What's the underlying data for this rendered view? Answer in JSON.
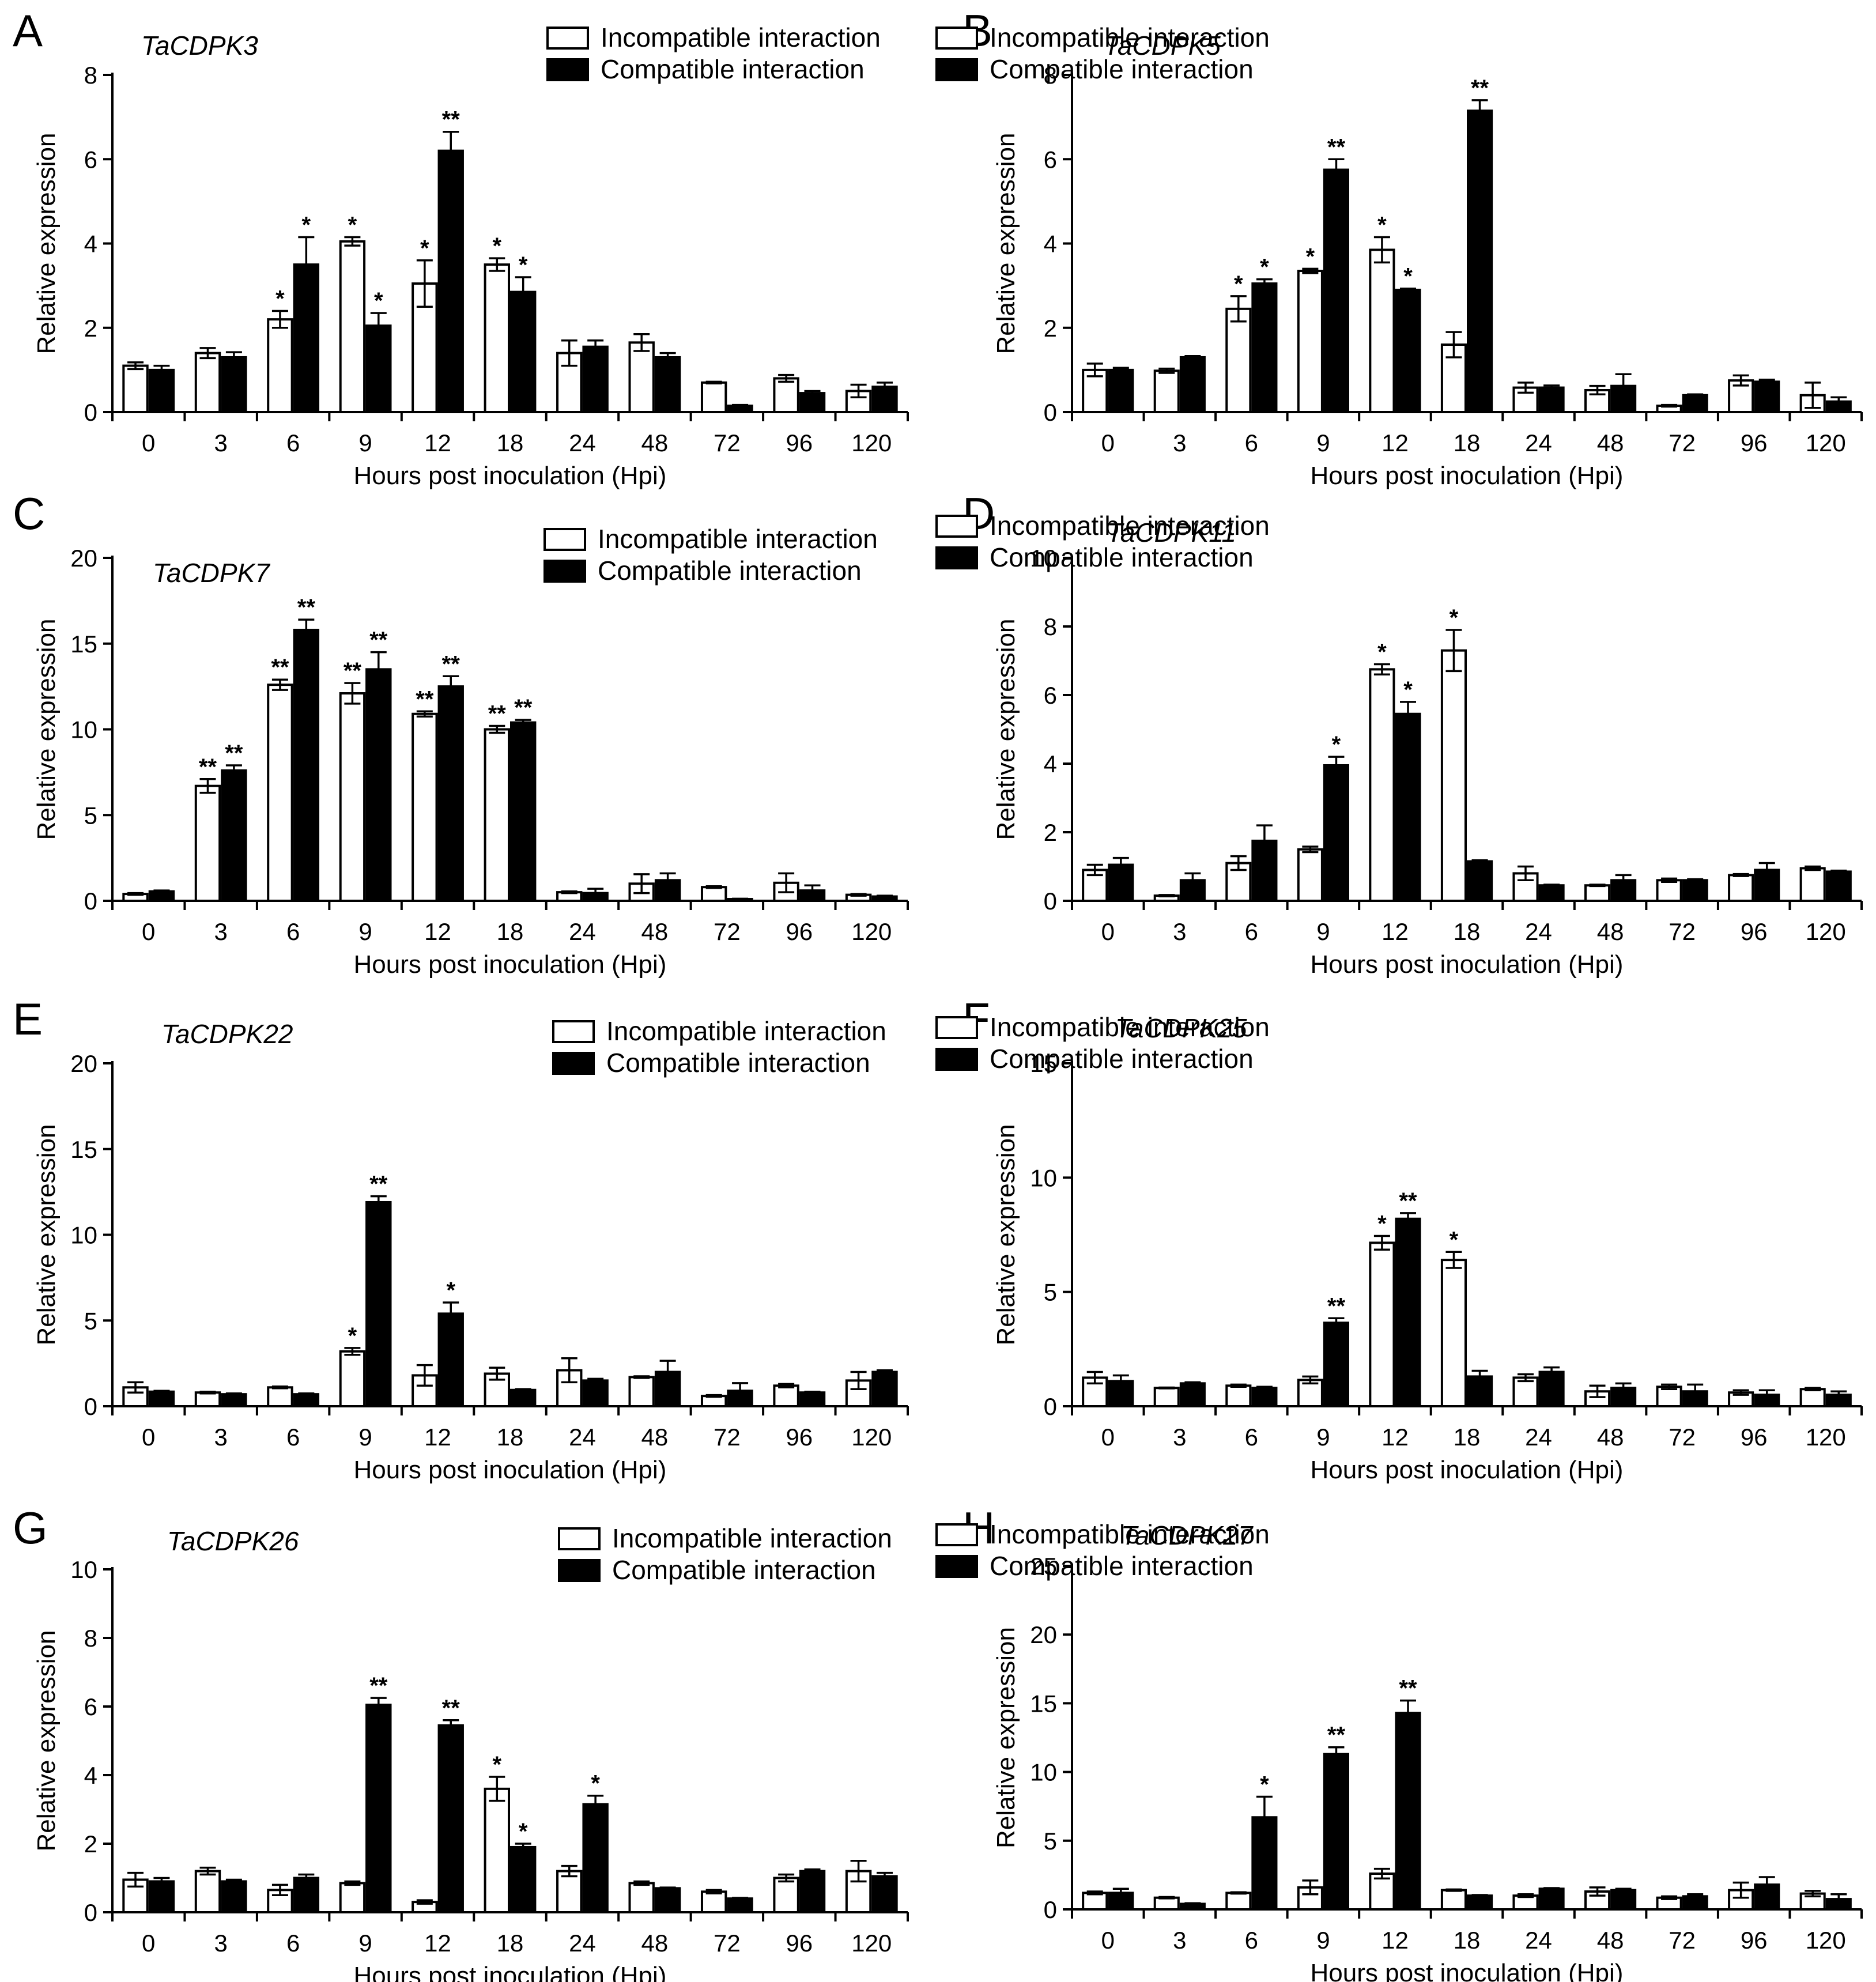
{
  "figure": {
    "categories": [
      "0",
      "3",
      "6",
      "9",
      "12",
      "18",
      "24",
      "48",
      "72",
      "96",
      "120"
    ],
    "xlabel": "Hours post inoculation (Hpi)",
    "ylabel": "Relative expression",
    "legend": [
      "Incompatible interaction",
      "Compatible interaction"
    ],
    "colors": {
      "incompatible": "#ffffff",
      "compatible": "#000000",
      "stroke": "#000000"
    }
  },
  "chart_data": [
    {
      "panel": "A",
      "title": "TaCDPK3",
      "type": "bar",
      "ylim": [
        0,
        8
      ],
      "yticks": [
        0,
        2,
        4,
        6,
        8
      ],
      "categories": [
        "0",
        "3",
        "6",
        "9",
        "12",
        "18",
        "24",
        "48",
        "72",
        "96",
        "120"
      ],
      "xlabel": "Hours post inoculation (Hpi)",
      "ylabel": "Relative expression",
      "series": [
        {
          "name": "Incompatible interaction",
          "values": [
            1.1,
            1.4,
            2.2,
            4.05,
            3.05,
            3.5,
            1.4,
            1.65,
            0.7,
            0.8,
            0.5
          ],
          "errors": [
            0.08,
            0.12,
            0.2,
            0.1,
            0.55,
            0.15,
            0.3,
            0.2,
            0.02,
            0.08,
            0.15
          ],
          "sig": [
            "",
            "",
            "*",
            "*",
            "*",
            "*",
            "",
            "",
            "",
            "",
            ""
          ]
        },
        {
          "name": "Compatible interaction",
          "values": [
            1.0,
            1.3,
            3.5,
            2.05,
            6.2,
            2.85,
            1.55,
            1.3,
            0.15,
            0.45,
            0.6
          ],
          "errors": [
            0.1,
            0.12,
            0.65,
            0.3,
            0.45,
            0.35,
            0.15,
            0.1,
            0.02,
            0.05,
            0.1
          ],
          "sig": [
            "",
            "",
            "*",
            "*",
            "**",
            "*",
            "",
            "",
            "",
            "",
            ""
          ]
        }
      ]
    },
    {
      "panel": "B",
      "title": "TaCDPK5",
      "type": "bar",
      "ylim": [
        0,
        8
      ],
      "yticks": [
        0,
        2,
        4,
        6,
        8
      ],
      "categories": [
        "0",
        "3",
        "6",
        "9",
        "12",
        "18",
        "24",
        "48",
        "72",
        "96",
        "120"
      ],
      "xlabel": "Hours post inoculation (Hpi)",
      "ylabel": "Relative expression",
      "series": [
        {
          "name": "Incompatible interaction",
          "values": [
            1.0,
            0.98,
            2.45,
            3.35,
            3.85,
            1.6,
            0.58,
            0.52,
            0.15,
            0.75,
            0.4
          ],
          "errors": [
            0.15,
            0.05,
            0.3,
            0.05,
            0.3,
            0.3,
            0.12,
            0.1,
            0.02,
            0.12,
            0.3
          ],
          "sig": [
            "",
            "",
            "*",
            "*",
            "*",
            "",
            "",
            "",
            "",
            "",
            ""
          ]
        },
        {
          "name": "Compatible interaction",
          "values": [
            1.0,
            1.3,
            3.05,
            5.75,
            2.9,
            7.15,
            0.58,
            0.62,
            0.4,
            0.72,
            0.25
          ],
          "errors": [
            0.05,
            0.03,
            0.1,
            0.25,
            0.03,
            0.25,
            0.05,
            0.28,
            0.02,
            0.05,
            0.1
          ],
          "sig": [
            "",
            "",
            "*",
            "**",
            "*",
            "**",
            "",
            "",
            "",
            "",
            ""
          ]
        }
      ]
    },
    {
      "panel": "C",
      "title": "TaCDPK7",
      "type": "bar",
      "ylim": [
        0,
        20
      ],
      "yticks": [
        0,
        5,
        10,
        15,
        20
      ],
      "categories": [
        "0",
        "3",
        "6",
        "9",
        "12",
        "18",
        "24",
        "48",
        "72",
        "96",
        "120"
      ],
      "xlabel": "Hours post inoculation (Hpi)",
      "ylabel": "Relative expression",
      "series": [
        {
          "name": "Incompatible interaction",
          "values": [
            0.4,
            6.7,
            12.6,
            12.1,
            10.9,
            10.0,
            0.5,
            1.0,
            0.8,
            1.05,
            0.35
          ],
          "errors": [
            0.05,
            0.4,
            0.3,
            0.6,
            0.15,
            0.2,
            0.05,
            0.55,
            0.05,
            0.55,
            0.05
          ],
          "sig": [
            "",
            "**",
            "**",
            "**",
            "**",
            "**",
            "",
            "",
            "",
            "",
            ""
          ]
        },
        {
          "name": "Compatible interaction",
          "values": [
            0.55,
            7.6,
            15.8,
            13.5,
            12.5,
            10.4,
            0.45,
            1.2,
            0.1,
            0.6,
            0.25
          ],
          "errors": [
            0.05,
            0.3,
            0.6,
            1.0,
            0.6,
            0.15,
            0.25,
            0.4,
            0.02,
            0.3,
            0.05
          ],
          "sig": [
            "",
            "**",
            "**",
            "**",
            "**",
            "**",
            "",
            "",
            "",
            "",
            ""
          ]
        }
      ]
    },
    {
      "panel": "D",
      "title": "TaCDPK11",
      "type": "bar",
      "ylim": [
        0,
        10
      ],
      "yticks": [
        0,
        2,
        4,
        6,
        8,
        10
      ],
      "categories": [
        "0",
        "3",
        "6",
        "9",
        "12",
        "18",
        "24",
        "48",
        "72",
        "96",
        "120"
      ],
      "xlabel": "Hours post inoculation (Hpi)",
      "ylabel": "Relative expression",
      "series": [
        {
          "name": "Incompatible interaction",
          "values": [
            0.9,
            0.15,
            1.1,
            1.5,
            6.75,
            7.3,
            0.8,
            0.45,
            0.6,
            0.75,
            0.95
          ],
          "errors": [
            0.15,
            0.02,
            0.2,
            0.08,
            0.15,
            0.6,
            0.2,
            0.02,
            0.05,
            0.03,
            0.05
          ],
          "sig": [
            "",
            "",
            "",
            "",
            "*",
            "*",
            "",
            "",
            "",
            "",
            ""
          ]
        },
        {
          "name": "Compatible interaction",
          "values": [
            1.05,
            0.6,
            1.75,
            3.95,
            5.45,
            1.15,
            0.45,
            0.6,
            0.6,
            0.9,
            0.85
          ],
          "errors": [
            0.2,
            0.2,
            0.45,
            0.25,
            0.35,
            0.03,
            0.02,
            0.15,
            0.03,
            0.2,
            0.03
          ],
          "sig": [
            "",
            "",
            "",
            "*",
            "*",
            "",
            "",
            "",
            "",
            "",
            ""
          ]
        }
      ]
    },
    {
      "panel": "E",
      "title": "TaCDPK22",
      "type": "bar",
      "ylim": [
        0,
        20
      ],
      "yticks": [
        0,
        5,
        10,
        15,
        20
      ],
      "categories": [
        "0",
        "3",
        "6",
        "9",
        "12",
        "18",
        "24",
        "48",
        "72",
        "96",
        "120"
      ],
      "xlabel": "Hours post inoculation (Hpi)",
      "ylabel": "Relative expression",
      "series": [
        {
          "name": "Incompatible interaction",
          "values": [
            1.1,
            0.8,
            1.1,
            3.2,
            1.8,
            1.9,
            2.1,
            1.7,
            0.6,
            1.2,
            1.5
          ],
          "errors": [
            0.3,
            0.05,
            0.05,
            0.2,
            0.6,
            0.35,
            0.7,
            0.05,
            0.05,
            0.1,
            0.5
          ],
          "sig": [
            "",
            "",
            "",
            "*",
            "",
            "",
            "",
            "",
            "",
            "",
            ""
          ]
        },
        {
          "name": "Compatible interaction",
          "values": [
            0.85,
            0.7,
            0.7,
            11.9,
            5.4,
            0.95,
            1.5,
            2.0,
            0.9,
            0.8,
            2.0
          ],
          "errors": [
            0.05,
            0.05,
            0.05,
            0.35,
            0.65,
            0.05,
            0.1,
            0.65,
            0.45,
            0.05,
            0.1
          ],
          "sig": [
            "",
            "",
            "",
            "**",
            "*",
            "",
            "",
            "",
            "",
            "",
            ""
          ]
        }
      ]
    },
    {
      "panel": "F",
      "title": "TaCDPK25",
      "type": "bar",
      "ylim": [
        0,
        15
      ],
      "yticks": [
        0,
        5,
        10,
        15
      ],
      "categories": [
        "0",
        "3",
        "6",
        "9",
        "12",
        "18",
        "24",
        "48",
        "72",
        "96",
        "120"
      ],
      "xlabel": "Hours post inoculation (Hpi)",
      "ylabel": "Relative expression",
      "series": [
        {
          "name": "Incompatible interaction",
          "values": [
            1.25,
            0.8,
            0.9,
            1.15,
            7.15,
            6.4,
            1.25,
            0.65,
            0.85,
            0.6,
            0.75
          ],
          "errors": [
            0.25,
            0.02,
            0.05,
            0.15,
            0.3,
            0.35,
            0.15,
            0.25,
            0.1,
            0.1,
            0.05
          ],
          "sig": [
            "",
            "",
            "",
            "",
            "*",
            "*",
            "",
            "",
            "",
            "",
            ""
          ]
        },
        {
          "name": "Compatible interaction",
          "values": [
            1.1,
            1.0,
            0.8,
            3.65,
            8.2,
            1.3,
            1.5,
            0.8,
            0.65,
            0.5,
            0.5
          ],
          "errors": [
            0.25,
            0.05,
            0.05,
            0.2,
            0.25,
            0.25,
            0.2,
            0.2,
            0.3,
            0.2,
            0.15
          ],
          "sig": [
            "",
            "",
            "",
            "**",
            "**",
            "",
            "",
            "",
            "",
            "",
            ""
          ]
        }
      ]
    },
    {
      "panel": "G",
      "title": "TaCDPK26",
      "type": "bar",
      "ylim": [
        0,
        10
      ],
      "yticks": [
        0,
        2,
        4,
        6,
        8,
        10
      ],
      "categories": [
        "0",
        "3",
        "6",
        "9",
        "12",
        "18",
        "24",
        "48",
        "72",
        "96",
        "120"
      ],
      "xlabel": "Hours post inoculation (Hpi)",
      "ylabel": "Relative expression",
      "series": [
        {
          "name": "Incompatible interaction",
          "values": [
            0.95,
            1.2,
            0.65,
            0.85,
            0.3,
            3.6,
            1.2,
            0.85,
            0.6,
            1.0,
            1.2
          ],
          "errors": [
            0.2,
            0.1,
            0.15,
            0.05,
            0.05,
            0.35,
            0.15,
            0.05,
            0.05,
            0.1,
            0.3
          ],
          "sig": [
            "",
            "",
            "",
            "",
            "",
            "*",
            "",
            "",
            "",
            "",
            ""
          ]
        },
        {
          "name": "Compatible interaction",
          "values": [
            0.9,
            0.9,
            1.0,
            6.05,
            5.45,
            1.9,
            3.15,
            0.7,
            0.4,
            1.2,
            1.05
          ],
          "errors": [
            0.1,
            0.05,
            0.1,
            0.2,
            0.15,
            0.1,
            0.25,
            0.02,
            0.02,
            0.05,
            0.1
          ],
          "sig": [
            "",
            "",
            "",
            "**",
            "**",
            "*",
            "*",
            "",
            "",
            "",
            ""
          ]
        }
      ]
    },
    {
      "panel": "H",
      "title": "TaCDPK27",
      "type": "bar",
      "ylim": [
        0,
        25
      ],
      "yticks": [
        0,
        5,
        10,
        15,
        20,
        25
      ],
      "categories": [
        "0",
        "3",
        "6",
        "9",
        "12",
        "18",
        "24",
        "48",
        "72",
        "96",
        "120"
      ],
      "xlabel": "Hours post inoculation (Hpi)",
      "ylabel": "Relative expression",
      "series": [
        {
          "name": "Incompatible interaction",
          "values": [
            1.2,
            0.85,
            1.2,
            1.6,
            2.6,
            1.4,
            1.0,
            1.3,
            0.85,
            1.4,
            1.15
          ],
          "errors": [
            0.1,
            0.05,
            0.05,
            0.5,
            0.35,
            0.05,
            0.1,
            0.3,
            0.1,
            0.55,
            0.2
          ],
          "sig": [
            "",
            "",
            "",
            "",
            "",
            "",
            "",
            "",
            "",
            "",
            ""
          ]
        },
        {
          "name": "Compatible interaction",
          "values": [
            1.2,
            0.4,
            6.7,
            11.3,
            14.3,
            1.0,
            1.5,
            1.4,
            0.95,
            1.8,
            0.75
          ],
          "errors": [
            0.3,
            0.05,
            1.5,
            0.5,
            0.9,
            0.05,
            0.05,
            0.1,
            0.15,
            0.55,
            0.35
          ],
          "sig": [
            "",
            "",
            "*",
            "**",
            "**",
            "",
            "",
            "",
            "",
            "",
            ""
          ]
        }
      ]
    }
  ]
}
